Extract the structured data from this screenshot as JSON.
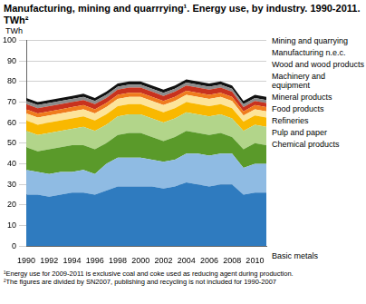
{
  "chart_data": {
    "type": "area",
    "title": "Manufacturing, mining and quarrrying¹. Energy use, by industry. 1990-2011. TWh²",
    "y_label": "TWh",
    "notes": [
      "¹Energy use for 2009-2011 is exclusive coal and coke used as reducing agent during production.",
      "²The figures are divided by SN2007, publishing and recycling is not included for 1990-2007"
    ],
    "categories": [
      1990,
      null,
      1992,
      null,
      1994,
      null,
      1996,
      null,
      1998,
      null,
      2000,
      null,
      2002,
      null,
      2004,
      null,
      2006,
      null,
      2008,
      null,
      2010,
      null
    ],
    "stacked": true,
    "grid": true,
    "legend": "right",
    "ylim": [
      0,
      100
    ],
    "yticks": [
      0,
      10,
      20,
      30,
      40,
      50,
      60,
      70,
      80,
      90,
      100
    ],
    "series": [
      {
        "name": "Basic metals",
        "color": "#2f7bbf",
        "values": [
          25,
          25,
          24,
          25,
          26,
          26,
          25,
          27,
          29,
          29,
          29,
          29,
          28,
          29,
          31,
          30,
          29,
          30,
          30,
          25,
          26,
          26
        ]
      },
      {
        "name": "Chemical products",
        "color": "#8fbbe3",
        "values": [
          12,
          11,
          11,
          11,
          10,
          11,
          10,
          13,
          14,
          14,
          14,
          13,
          13,
          13,
          14,
          15,
          15,
          15,
          15,
          13,
          14,
          14
        ]
      },
      {
        "name": "Pulp and paper",
        "color": "#5a9a2a",
        "values": [
          11,
          10,
          12,
          12,
          13,
          12,
          12,
          10,
          11,
          12,
          12,
          11,
          10,
          11,
          11,
          10,
          10,
          10,
          8,
          9,
          10,
          9
        ]
      },
      {
        "name": "Refineries",
        "color": "#b2d58a",
        "values": [
          8,
          8,
          8,
          8,
          8,
          9,
          9,
          9,
          9,
          9,
          9,
          9,
          9,
          9,
          9,
          9,
          9,
          9,
          9,
          9,
          9,
          9
        ]
      },
      {
        "name": "Food products",
        "color": "#f9b800",
        "values": [
          5,
          5,
          5,
          5,
          5,
          5,
          5,
          5,
          5,
          5,
          5,
          5,
          5,
          5,
          5,
          5,
          5,
          5,
          5,
          4.5,
          4.5,
          4.5
        ]
      },
      {
        "name": "Mineral products",
        "color": "#fde49a",
        "values": [
          3.5,
          3.5,
          3.5,
          3.5,
          3.5,
          3.5,
          3.5,
          3.5,
          3.5,
          3.5,
          3.5,
          3.5,
          3.5,
          3.5,
          3.5,
          3.5,
          3.5,
          3.5,
          3.5,
          3,
          3,
          3
        ]
      },
      {
        "name": "Machinery and equipment",
        "color": "#f07c1e",
        "values": [
          2,
          2,
          2,
          2,
          2,
          2,
          2,
          2,
          2,
          2,
          2,
          2,
          2,
          2,
          2,
          2,
          2,
          2,
          2,
          2,
          2,
          2
        ]
      },
      {
        "name": "Wood and wood products",
        "color": "#c8321e",
        "values": [
          2.5,
          2.5,
          2.5,
          2.5,
          2.5,
          2.5,
          2.5,
          2.5,
          2.5,
          2.5,
          2.5,
          2.5,
          2.5,
          2.5,
          2.5,
          2.5,
          2.5,
          2.5,
          2.5,
          2,
          2,
          2
        ]
      },
      {
        "name": "Manufacturing n.e.c.",
        "color": "#8c8c8c",
        "values": [
          1.5,
          1.5,
          1.5,
          1.5,
          1.5,
          1.5,
          1.5,
          1.5,
          1.5,
          1.5,
          1.5,
          1.5,
          1.5,
          1.5,
          1.5,
          1.5,
          1.5,
          1.5,
          1.5,
          1.5,
          1.5,
          1.5
        ]
      },
      {
        "name": "Mining and quarrying",
        "color": "#111111",
        "values": [
          1.5,
          1.5,
          1.5,
          1.5,
          1.5,
          1.5,
          1.5,
          1.5,
          1.5,
          1.5,
          1.5,
          1.5,
          1.5,
          1.5,
          1.5,
          1.5,
          1.5,
          1.5,
          1.5,
          1.5,
          1.5,
          1.5
        ]
      }
    ]
  }
}
